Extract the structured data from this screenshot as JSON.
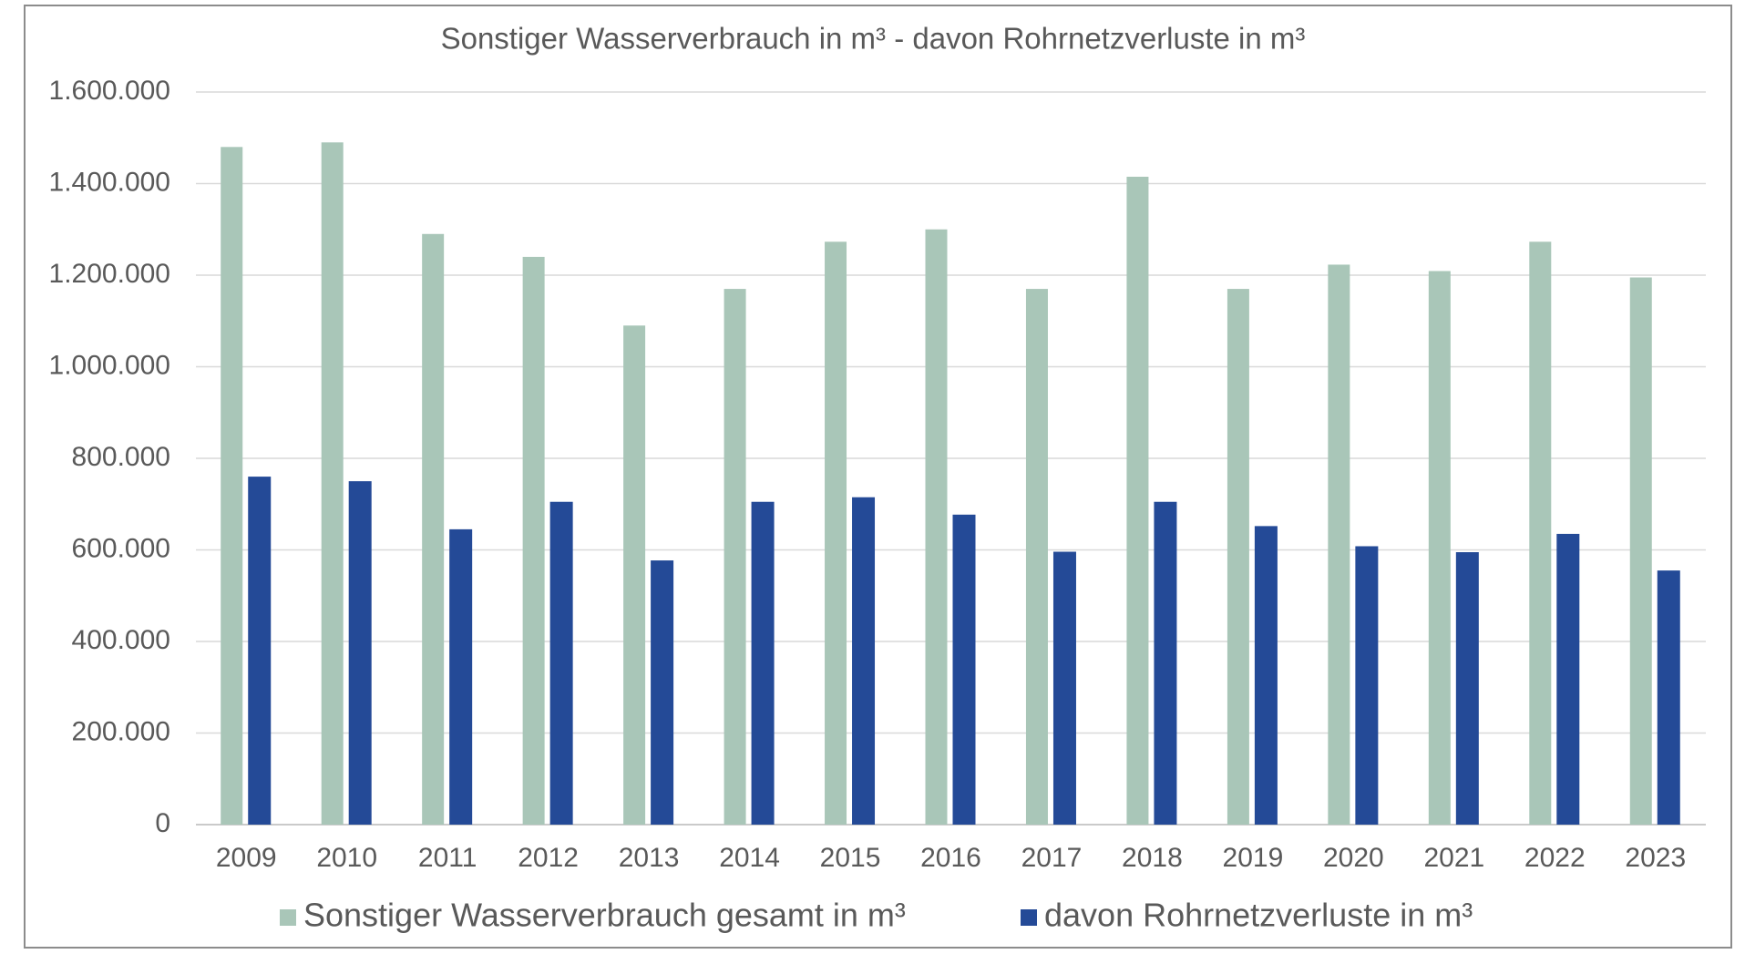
{
  "chart_data": {
    "type": "bar",
    "title": "Sonstiger Wasserverbrauch in m³ - davon Rohrnetzverluste in m³",
    "categories": [
      "2009",
      "2010",
      "2011",
      "2012",
      "2013",
      "2014",
      "2015",
      "2016",
      "2017",
      "2018",
      "2019",
      "2020",
      "2021",
      "2022",
      "2023"
    ],
    "series": [
      {
        "name": "Sonstiger Wasserverbrauch gesamt in m³",
        "color": "#a9c6b8",
        "values": [
          1480000,
          1490000,
          1290000,
          1240000,
          1090000,
          1170000,
          1273000,
          1300000,
          1170000,
          1415000,
          1170000,
          1223000,
          1209000,
          1273000,
          1195000
        ]
      },
      {
        "name": "davon Rohrnetzverluste in m³",
        "color": "#244a97",
        "values": [
          760000,
          750000,
          645000,
          705000,
          577000,
          705000,
          715000,
          677000,
          596000,
          705000,
          652000,
          608000,
          595000,
          635000,
          555000
        ]
      }
    ],
    "ylim": [
      0,
      1600000
    ],
    "yticks": [
      0,
      {
        "value": 200000,
        "label": "200.000"
      },
      {
        "value": 400000,
        "label": "400.000"
      },
      {
        "value": 600000,
        "label": "600.000"
      },
      {
        "value": 800000,
        "label": "800.000"
      },
      {
        "value": 1000000,
        "label": "1.000.000"
      },
      {
        "value": 1200000,
        "label": "1.200.000"
      },
      {
        "value": 1400000,
        "label": "1.400.000"
      },
      {
        "value": 1600000,
        "label": "1.600.000"
      }
    ],
    "grid": true,
    "legend": "bottom"
  }
}
